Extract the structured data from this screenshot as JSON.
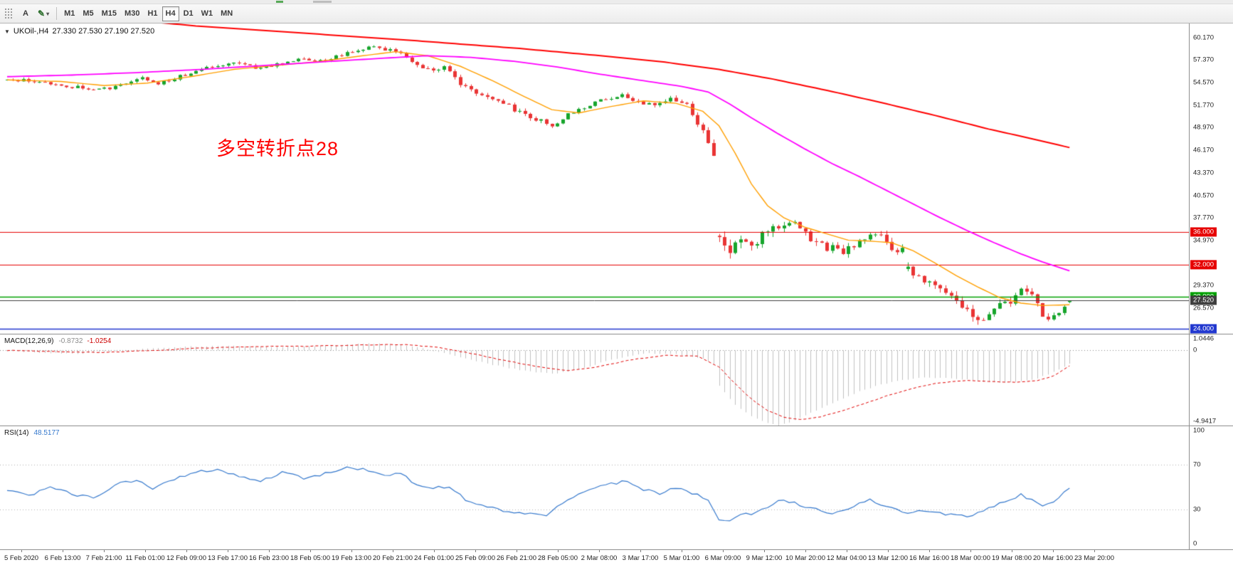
{
  "toolbar": {
    "icons": {
      "grip": "grip",
      "text_tool": "A",
      "draw_tool": "✎",
      "dropdown": "▾",
      "collapse": "▼"
    },
    "timeframes": [
      {
        "label": "M1"
      },
      {
        "label": "M5"
      },
      {
        "label": "M15"
      },
      {
        "label": "M30"
      },
      {
        "label": "H1"
      },
      {
        "label": "H4",
        "active": true
      },
      {
        "label": "D1"
      },
      {
        "label": "W1"
      },
      {
        "label": "MN"
      }
    ]
  },
  "chart": {
    "symbol": "UKOil-,H4",
    "ohlc_text": "27.330 27.530 27.190 27.520",
    "ohlc_values": [
      27.33,
      27.53,
      27.19,
      27.52
    ],
    "annotation": {
      "text": "多空转折点28",
      "color": "#ff0000"
    },
    "up_color": "#17a52c",
    "down_color": "#e93434",
    "price_min": 23.4,
    "price_max": 61.9,
    "bars": 198,
    "noise_seed": 20200323,
    "price_axis_labels": [
      60.17,
      57.37,
      54.57,
      51.77,
      48.97,
      46.17,
      43.37,
      40.57,
      37.77,
      34.97,
      32.17,
      29.37,
      26.57
    ],
    "hlines": [
      {
        "value": 36.0,
        "label": "36.000",
        "color": "#e60000",
        "width": 1.2
      },
      {
        "value": 32.0,
        "label": "32.000",
        "color": "#e60000",
        "width": 1.2
      },
      {
        "value": 28.0,
        "label": "28.000",
        "color": "#00a000",
        "width": 1.6
      },
      {
        "value": 24.0,
        "label": "24.000",
        "color": "#2238cf",
        "width": 1.6
      }
    ],
    "bid": {
      "value": 27.52,
      "label": "27.520",
      "color": "#3f3f3f"
    },
    "price_keypoints": [
      [
        0,
        55.0
      ],
      [
        6,
        54.7
      ],
      [
        10,
        54.2
      ],
      [
        14,
        53.9
      ],
      [
        19,
        53.8
      ],
      [
        23,
        54.6
      ],
      [
        25,
        55.1
      ],
      [
        28,
        54.4
      ],
      [
        32,
        55.4
      ],
      [
        38,
        56.5
      ],
      [
        42,
        57.0
      ],
      [
        46,
        56.4
      ],
      [
        50,
        56.8
      ],
      [
        54,
        57.6
      ],
      [
        58,
        57.2
      ],
      [
        62,
        58.0
      ],
      [
        67,
        59.0
      ],
      [
        70,
        58.7
      ],
      [
        73,
        58.4
      ],
      [
        75,
        57.2
      ],
      [
        78,
        56.1
      ],
      [
        81,
        56.5
      ],
      [
        84,
        54.2
      ],
      [
        88,
        52.9
      ],
      [
        92,
        51.9
      ],
      [
        95,
        50.9
      ],
      [
        99,
        49.7
      ],
      [
        101,
        49.1
      ],
      [
        104,
        50.6
      ],
      [
        108,
        51.7
      ],
      [
        111,
        52.5
      ],
      [
        114,
        52.9
      ],
      [
        117,
        52.3
      ],
      [
        120,
        51.6
      ],
      [
        123,
        52.4
      ],
      [
        126,
        51.9
      ],
      [
        127,
        50.6
      ],
      [
        129,
        48.6
      ],
      [
        130,
        47.0
      ],
      [
        131,
        45.6
      ],
      [
        132,
        35.8
      ],
      [
        134,
        33.4
      ],
      [
        136,
        34.9
      ],
      [
        138,
        34.4
      ],
      [
        141,
        36.2
      ],
      [
        144,
        37.4
      ],
      [
        146,
        37.0
      ],
      [
        149,
        35.3
      ],
      [
        152,
        34.2
      ],
      [
        155,
        33.4
      ],
      [
        158,
        34.7
      ],
      [
        160,
        35.9
      ],
      [
        162,
        35.2
      ],
      [
        164,
        33.8
      ],
      [
        166,
        33.8
      ],
      [
        167,
        31.3
      ],
      [
        169,
        30.2
      ],
      [
        171,
        29.6
      ],
      [
        173,
        28.7
      ],
      [
        176,
        27.4
      ],
      [
        178,
        26.5
      ],
      [
        180,
        25.3
      ],
      [
        182,
        25.6
      ],
      [
        183,
        26.4
      ],
      [
        185,
        27.3
      ],
      [
        186,
        27.6
      ],
      [
        188,
        28.9
      ],
      [
        190,
        27.9
      ],
      [
        192,
        25.9
      ],
      [
        193,
        25.2
      ],
      [
        194,
        25.5
      ],
      [
        196,
        26.7
      ],
      [
        197,
        27.4
      ]
    ],
    "volatility_keypoints": [
      [
        0,
        0.45
      ],
      [
        60,
        0.45
      ],
      [
        75,
        0.6
      ],
      [
        95,
        0.75
      ],
      [
        105,
        0.65
      ],
      [
        118,
        0.55
      ],
      [
        126,
        0.7
      ],
      [
        131,
        1.0
      ],
      [
        133,
        1.6
      ],
      [
        140,
        1.4
      ],
      [
        150,
        1.2
      ],
      [
        160,
        1.1
      ],
      [
        170,
        1.1
      ],
      [
        180,
        1.2
      ],
      [
        190,
        1.0
      ],
      [
        197,
        0.8
      ]
    ],
    "ma_lines": [
      {
        "name": "ma-fast-orange",
        "color": "#ff9f00",
        "width": 1.4,
        "keypoints": [
          [
            0,
            54.9
          ],
          [
            10,
            54.7
          ],
          [
            18,
            54.2
          ],
          [
            26,
            54.5
          ],
          [
            34,
            55.3
          ],
          [
            42,
            56.2
          ],
          [
            50,
            56.7
          ],
          [
            58,
            57.2
          ],
          [
            66,
            57.9
          ],
          [
            72,
            58.4
          ],
          [
            78,
            57.9
          ],
          [
            84,
            56.6
          ],
          [
            90,
            54.8
          ],
          [
            96,
            52.8
          ],
          [
            101,
            51.2
          ],
          [
            106,
            50.8
          ],
          [
            112,
            51.6
          ],
          [
            118,
            52.3
          ],
          [
            124,
            52.0
          ],
          [
            129,
            51.0
          ],
          [
            132,
            49.2
          ],
          [
            135,
            45.8
          ],
          [
            138,
            42.0
          ],
          [
            141,
            39.3
          ],
          [
            144,
            37.8
          ],
          [
            148,
            36.6
          ],
          [
            152,
            35.8
          ],
          [
            156,
            35.0
          ],
          [
            160,
            34.9
          ],
          [
            164,
            34.7
          ],
          [
            168,
            33.7
          ],
          [
            172,
            32.2
          ],
          [
            176,
            30.6
          ],
          [
            180,
            29.2
          ],
          [
            184,
            27.9
          ],
          [
            188,
            27.2
          ],
          [
            192,
            26.9
          ],
          [
            197,
            27.0
          ]
        ]
      },
      {
        "name": "ma-mid-magenta",
        "color": "#ff00ff",
        "width": 1.8,
        "keypoints": [
          [
            0,
            55.3
          ],
          [
            12,
            55.5
          ],
          [
            24,
            55.8
          ],
          [
            36,
            56.2
          ],
          [
            48,
            56.7
          ],
          [
            60,
            57.2
          ],
          [
            70,
            57.6
          ],
          [
            78,
            57.9
          ],
          [
            86,
            57.7
          ],
          [
            94,
            57.2
          ],
          [
            102,
            56.5
          ],
          [
            110,
            55.6
          ],
          [
            118,
            54.8
          ],
          [
            125,
            54.1
          ],
          [
            130,
            53.4
          ],
          [
            134,
            51.9
          ],
          [
            138,
            50.2
          ],
          [
            143,
            48.2
          ],
          [
            148,
            46.3
          ],
          [
            153,
            44.5
          ],
          [
            158,
            42.9
          ],
          [
            163,
            41.2
          ],
          [
            168,
            39.5
          ],
          [
            173,
            37.8
          ],
          [
            178,
            36.2
          ],
          [
            183,
            34.7
          ],
          [
            188,
            33.3
          ],
          [
            192,
            32.3
          ],
          [
            197,
            31.2
          ]
        ]
      },
      {
        "name": "ma-slow-red",
        "color": "#ff0000",
        "width": 2,
        "keypoints": [
          [
            0,
            63.6
          ],
          [
            20,
            62.5
          ],
          [
            35,
            61.6
          ],
          [
            55,
            60.7
          ],
          [
            75,
            59.8
          ],
          [
            95,
            58.8
          ],
          [
            110,
            57.9
          ],
          [
            122,
            57.1
          ],
          [
            132,
            56.2
          ],
          [
            142,
            55.0
          ],
          [
            152,
            53.6
          ],
          [
            162,
            52.1
          ],
          [
            172,
            50.5
          ],
          [
            182,
            48.8
          ],
          [
            190,
            47.6
          ],
          [
            197,
            46.5
          ]
        ]
      }
    ]
  },
  "macd": {
    "label": "MACD(12,26,9)",
    "value": "-0.8732",
    "signal_value": "-1.0254",
    "scale_max": 1.0446,
    "scale_min": -4.9417,
    "scale_labels": [
      1.0446,
      0,
      -4.9417
    ],
    "hist_color": "#c0c0c0",
    "signal_color": "#e00000",
    "main_keypoints": [
      [
        0,
        -0.05
      ],
      [
        8,
        -0.18
      ],
      [
        14,
        -0.22
      ],
      [
        20,
        -0.05
      ],
      [
        26,
        0.1
      ],
      [
        34,
        0.25
      ],
      [
        42,
        0.3
      ],
      [
        50,
        0.22
      ],
      [
        58,
        0.3
      ],
      [
        66,
        0.45
      ],
      [
        73,
        0.38
      ],
      [
        78,
        0.05
      ],
      [
        84,
        -0.45
      ],
      [
        90,
        -0.95
      ],
      [
        96,
        -1.35
      ],
      [
        101,
        -1.55
      ],
      [
        106,
        -1.25
      ],
      [
        112,
        -0.6
      ],
      [
        118,
        -0.2
      ],
      [
        124,
        -0.25
      ],
      [
        129,
        -0.55
      ],
      [
        131,
        -0.9
      ],
      [
        132,
        -2.3
      ],
      [
        135,
        -3.6
      ],
      [
        138,
        -4.35
      ],
      [
        141,
        -4.75
      ],
      [
        143,
        -4.94
      ],
      [
        146,
        -4.6
      ],
      [
        150,
        -3.95
      ],
      [
        154,
        -3.3
      ],
      [
        158,
        -2.7
      ],
      [
        162,
        -2.25
      ],
      [
        166,
        -1.95
      ],
      [
        170,
        -1.8
      ],
      [
        174,
        -1.8
      ],
      [
        178,
        -1.92
      ],
      [
        182,
        -2.1
      ],
      [
        186,
        -2.12
      ],
      [
        190,
        -1.95
      ],
      [
        193,
        -1.6
      ],
      [
        195,
        -1.25
      ],
      [
        197,
        -0.87
      ]
    ],
    "signal_keypoints": [
      [
        0,
        0.0
      ],
      [
        10,
        -0.1
      ],
      [
        18,
        -0.14
      ],
      [
        26,
        -0.02
      ],
      [
        36,
        0.15
      ],
      [
        46,
        0.25
      ],
      [
        56,
        0.27
      ],
      [
        66,
        0.36
      ],
      [
        74,
        0.38
      ],
      [
        80,
        0.18
      ],
      [
        86,
        -0.2
      ],
      [
        92,
        -0.65
      ],
      [
        98,
        -1.05
      ],
      [
        104,
        -1.35
      ],
      [
        110,
        -1.05
      ],
      [
        116,
        -0.6
      ],
      [
        122,
        -0.32
      ],
      [
        128,
        -0.38
      ],
      [
        132,
        -1.1
      ],
      [
        135,
        -2.2
      ],
      [
        138,
        -3.2
      ],
      [
        141,
        -3.95
      ],
      [
        144,
        -4.4
      ],
      [
        147,
        -4.55
      ],
      [
        151,
        -4.35
      ],
      [
        155,
        -3.95
      ],
      [
        159,
        -3.5
      ],
      [
        163,
        -3.0
      ],
      [
        167,
        -2.6
      ],
      [
        171,
        -2.25
      ],
      [
        175,
        -2.05
      ],
      [
        179,
        -1.98
      ],
      [
        183,
        -2.05
      ],
      [
        187,
        -2.1
      ],
      [
        191,
        -2.0
      ],
      [
        194,
        -1.7
      ],
      [
        197,
        -1.03
      ]
    ]
  },
  "rsi": {
    "label": "RSI(14)",
    "value": "48.5177",
    "line_color": "#3377cc",
    "levels": [
      100,
      70,
      30,
      0
    ],
    "level_lines": [
      70,
      30
    ],
    "keypoints": [
      [
        0,
        48
      ],
      [
        4,
        42
      ],
      [
        8,
        50
      ],
      [
        12,
        44
      ],
      [
        16,
        40
      ],
      [
        20,
        52
      ],
      [
        24,
        56
      ],
      [
        27,
        48
      ],
      [
        31,
        57
      ],
      [
        35,
        63
      ],
      [
        39,
        66
      ],
      [
        43,
        60
      ],
      [
        47,
        55
      ],
      [
        51,
        63
      ],
      [
        55,
        58
      ],
      [
        59,
        62
      ],
      [
        63,
        67
      ],
      [
        67,
        65
      ],
      [
        70,
        60
      ],
      [
        73,
        62
      ],
      [
        76,
        52
      ],
      [
        79,
        49
      ],
      [
        82,
        51
      ],
      [
        85,
        39
      ],
      [
        88,
        33
      ],
      [
        91,
        30
      ],
      [
        94,
        28
      ],
      [
        97,
        26
      ],
      [
        100,
        25
      ],
      [
        103,
        36
      ],
      [
        106,
        43
      ],
      [
        109,
        49
      ],
      [
        112,
        53
      ],
      [
        115,
        55
      ],
      [
        118,
        48
      ],
      [
        121,
        44
      ],
      [
        124,
        50
      ],
      [
        127,
        45
      ],
      [
        130,
        38
      ],
      [
        132,
        22
      ],
      [
        134,
        20
      ],
      [
        136,
        27
      ],
      [
        138,
        25
      ],
      [
        140,
        31
      ],
      [
        142,
        35
      ],
      [
        144,
        39
      ],
      [
        146,
        36
      ],
      [
        148,
        32
      ],
      [
        150,
        30
      ],
      [
        152,
        28
      ],
      [
        154,
        27
      ],
      [
        156,
        31
      ],
      [
        158,
        35
      ],
      [
        160,
        39
      ],
      [
        162,
        34
      ],
      [
        164,
        31
      ],
      [
        166,
        28
      ],
      [
        168,
        27
      ],
      [
        170,
        29
      ],
      [
        172,
        27
      ],
      [
        174,
        26
      ],
      [
        176,
        25
      ],
      [
        178,
        24
      ],
      [
        180,
        27
      ],
      [
        182,
        31
      ],
      [
        184,
        35
      ],
      [
        186,
        39
      ],
      [
        188,
        43
      ],
      [
        190,
        38
      ],
      [
        192,
        33
      ],
      [
        194,
        37
      ],
      [
        196,
        45
      ],
      [
        197,
        48.5
      ]
    ]
  },
  "time_axis": {
    "labels": [
      "5 Feb 2020",
      "6 Feb 13:00",
      "7 Feb 21:00",
      "11 Feb 01:00",
      "12 Feb 09:00",
      "13 Feb 17:00",
      "16 Feb 23:00",
      "18 Feb 05:00",
      "19 Feb 13:00",
      "20 Feb 21:00",
      "24 Feb 01:00",
      "25 Feb 09:00",
      "26 Feb 21:00",
      "28 Feb 05:00",
      "2 Mar 08:00",
      "3 Mar 17:00",
      "5 Mar 01:00",
      "6 Mar 09:00",
      "9 Mar 12:00",
      "10 Mar 20:00",
      "12 Mar 04:00",
      "13 Mar 12:00",
      "16 Mar 16:00",
      "18 Mar 00:00",
      "19 Mar 08:00",
      "20 Mar 16:00",
      "23 Mar 20:00"
    ]
  }
}
